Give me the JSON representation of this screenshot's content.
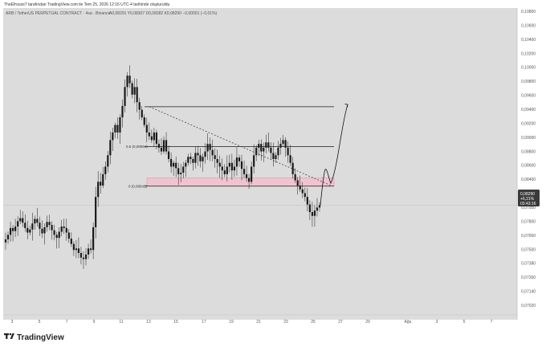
{
  "top_note": "TheEfrouze7 tarafından TradingView.com ile Tem 25, 2026 12:16 UTC-4 tarihinde oluşturuldu",
  "header": {
    "symbol": "ARB / TetherUS PERPETUAL CONTRACT · 4sa · Binance",
    "ohlc": "A0,08291 Y0,08307 D0,08282 K0,08290 −0,00001 (−0,01%)"
  },
  "price_axis": {
    "labels": [
      "0,10800",
      "0,10600",
      "0,10400",
      "0,10200",
      "0,10000",
      "0,09800",
      "0,09600",
      "0,09400",
      "0,09200",
      "0,09000",
      "0,08800",
      "0,08600",
      "0,08400",
      "0,08100",
      "0,07950",
      "0,07800",
      "0,07650",
      "0,07500",
      "0,07380",
      "0,07260",
      "0,07140",
      "0,07020"
    ],
    "current": {
      "price": "0,08290",
      "change": "+6,21%",
      "timer": "03:43:16"
    }
  },
  "time_axis": {
    "labels": [
      "3",
      "5",
      "7",
      "9",
      "11",
      "13",
      "15",
      "17",
      "19",
      "21",
      "23",
      "25",
      "27",
      "29",
      "Ağu",
      "3",
      "5",
      "7"
    ]
  },
  "fib_labels": [
    "0.5 (0,09064)",
    "0 (0,08542)"
  ],
  "brand": {
    "name": "TradingView"
  },
  "colors": {
    "background": "#dcdcdc",
    "candle": "#1a1a1a",
    "zone": "#f2c0cf",
    "zone_border": "#d48aa0",
    "price_tag": "#3a3a3a"
  },
  "chart_data": {
    "type": "candlestick",
    "ylim": [
      0.0695,
      0.1085
    ],
    "levels": [
      0.0959,
      0.09064,
      0.08542
    ],
    "zone": [
      0.08542,
      0.0865
    ],
    "last_price": 0.0829,
    "close_path": [
      0.0784,
      0.079,
      0.0799,
      0.0795,
      0.0801,
      0.0808,
      0.0812,
      0.0806,
      0.0799,
      0.0793,
      0.0797,
      0.0805,
      0.0811,
      0.0806,
      0.0798,
      0.0792,
      0.08,
      0.0807,
      0.0803,
      0.0796,
      0.079,
      0.0786,
      0.0794,
      0.0801,
      0.0799,
      0.0793,
      0.0785,
      0.0778,
      0.077,
      0.0772,
      0.0766,
      0.076,
      0.0758,
      0.0764,
      0.0772,
      0.077,
      0.08,
      0.084,
      0.086,
      0.0855,
      0.087,
      0.088,
      0.0895,
      0.0915,
      0.0925,
      0.0935,
      0.0925,
      0.0945,
      0.096,
      0.0985,
      0.1,
      0.099,
      0.0975,
      0.0985,
      0.0965,
      0.0955,
      0.0945,
      0.0935,
      0.0925,
      0.092,
      0.0915,
      0.0925,
      0.091,
      0.0905,
      0.09,
      0.0915,
      0.09,
      0.089,
      0.088,
      0.0885,
      0.0878,
      0.087,
      0.0872,
      0.088,
      0.0885,
      0.0893,
      0.089,
      0.0885,
      0.0898,
      0.0895,
      0.0887,
      0.0893,
      0.09,
      0.091,
      0.0902,
      0.0895,
      0.089,
      0.0885,
      0.088,
      0.0875,
      0.087,
      0.088,
      0.0885,
      0.0875,
      0.088,
      0.0892,
      0.0887,
      0.0877,
      0.087,
      0.0865,
      0.086,
      0.088,
      0.0895,
      0.0905,
      0.091,
      0.09,
      0.0905,
      0.0912,
      0.0905,
      0.0898,
      0.089,
      0.0895,
      0.0905,
      0.091,
      0.0915,
      0.0905,
      0.0895,
      0.0885,
      0.087,
      0.0862,
      0.0855,
      0.085,
      0.0845,
      0.084,
      0.083,
      0.082,
      0.0815,
      0.0822,
      0.0826,
      0.0829
    ]
  }
}
